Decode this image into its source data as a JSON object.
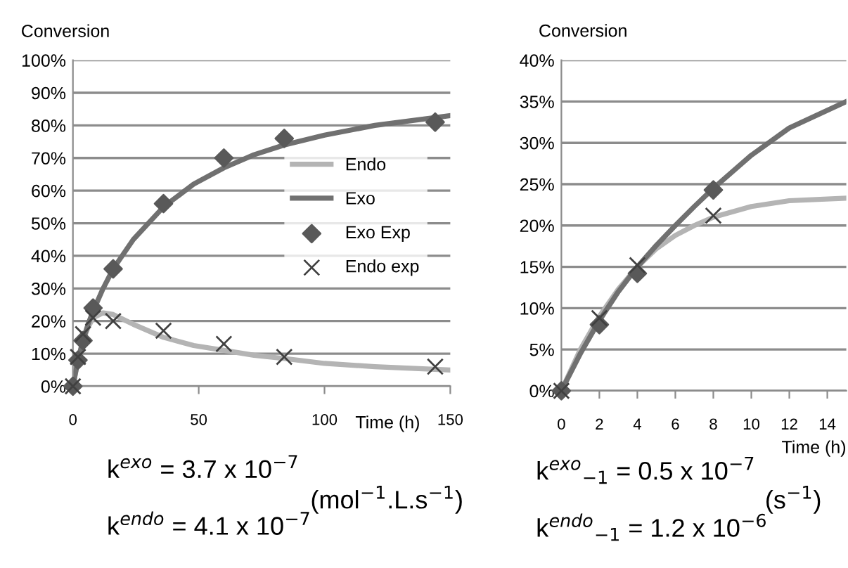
{
  "chart_data": [
    {
      "type": "line",
      "ylabel": "Conversion",
      "xlabel": "Time (h)",
      "xlim": [
        0,
        150
      ],
      "xticks": [
        0,
        50,
        100,
        150
      ],
      "ylim": [
        0,
        100
      ],
      "yticks": [
        {
          "value": 0,
          "label": "0%"
        },
        {
          "value": 10,
          "label": "10%"
        },
        {
          "value": 20,
          "label": "20%"
        },
        {
          "value": 30,
          "label": "30%"
        },
        {
          "value": 40,
          "label": "40%"
        },
        {
          "value": 50,
          "label": "50%"
        },
        {
          "value": 60,
          "label": "60%"
        },
        {
          "value": 70,
          "label": "70%"
        },
        {
          "value": 80,
          "label": "80%"
        },
        {
          "value": 90,
          "label": "90%"
        },
        {
          "value": 100,
          "label": "100%"
        }
      ],
      "grid": "y",
      "legend": "right",
      "series": [
        {
          "name": "Endo",
          "type": "line",
          "color": "#b4b4b4",
          "x": [
            0,
            2,
            4,
            6,
            8,
            12,
            16,
            24,
            36,
            48,
            60,
            72,
            84,
            100,
            120,
            150
          ],
          "values": [
            0,
            8,
            14,
            18,
            21,
            22.5,
            22,
            19,
            15,
            12.5,
            11,
            9.5,
            8.5,
            7,
            6,
            5
          ]
        },
        {
          "name": "Exo",
          "type": "line",
          "color": "#707070",
          "x": [
            0,
            2,
            4,
            6,
            8,
            12,
            16,
            24,
            36,
            48,
            60,
            72,
            84,
            100,
            120,
            150
          ],
          "values": [
            0,
            8,
            14,
            19,
            23,
            30,
            36,
            45,
            55,
            62,
            67,
            71,
            74,
            77,
            80,
            83
          ]
        },
        {
          "name": "Exo Exp",
          "type": "scatter",
          "marker": "diamond",
          "color": "#595959",
          "x": [
            0,
            2,
            4,
            8,
            16,
            36,
            60,
            84,
            144
          ],
          "values": [
            0,
            8,
            14,
            24,
            36,
            56,
            70,
            76,
            81
          ]
        },
        {
          "name": "Endo exp",
          "type": "scatter",
          "marker": "cross",
          "color": "#404040",
          "x": [
            0,
            2,
            4,
            8,
            16,
            36,
            60,
            84,
            144
          ],
          "values": [
            0,
            9,
            16,
            21,
            20,
            17,
            13,
            9,
            6
          ]
        }
      ],
      "annotations": [
        "k$^{exo}$ = 3.7 x 10$^{−7}$",
        "k$^{endo}$ = 4.1 x 10$^{−7}$",
        "(mol$^{−1}$.L.s$^{−1}$)"
      ]
    },
    {
      "type": "line",
      "ylabel": "Conversion",
      "xlabel": "Time (h)",
      "xlim": [
        0,
        15
      ],
      "xticks": [
        0,
        2,
        4,
        6,
        8,
        10,
        12,
        14
      ],
      "ylim": [
        0,
        40
      ],
      "yticks": [
        {
          "value": 0,
          "label": "0%"
        },
        {
          "value": 5,
          "label": "5%"
        },
        {
          "value": 10,
          "label": "10%"
        },
        {
          "value": 15,
          "label": "15%"
        },
        {
          "value": 20,
          "label": "20%"
        },
        {
          "value": 25,
          "label": "25%"
        },
        {
          "value": 30,
          "label": "30%"
        },
        {
          "value": 35,
          "label": "35%"
        },
        {
          "value": 40,
          "label": "40%"
        }
      ],
      "grid": "y",
      "series": [
        {
          "type": "line",
          "color": "#b4b4b4",
          "x": [
            0,
            1,
            2,
            3,
            4,
            5,
            6,
            7,
            8,
            10,
            12,
            15
          ],
          "values": [
            0,
            5,
            9,
            12.3,
            15,
            17.2,
            18.8,
            20,
            21,
            22.3,
            23,
            23.3
          ]
        },
        {
          "type": "line",
          "color": "#707070",
          "x": [
            0,
            1,
            2,
            3,
            4,
            5,
            6,
            7,
            8,
            10,
            12,
            15
          ],
          "values": [
            0,
            4.5,
            8.5,
            12,
            15,
            17.6,
            20,
            22.3,
            24.5,
            28.5,
            31.8,
            35
          ]
        },
        {
          "type": "scatter",
          "marker": "diamond",
          "color": "#595959",
          "x": [
            0,
            2,
            4,
            8
          ],
          "values": [
            0,
            8,
            14.2,
            24.3
          ]
        },
        {
          "type": "scatter",
          "marker": "cross",
          "color": "#404040",
          "x": [
            0,
            2,
            4,
            8
          ],
          "values": [
            0,
            8.8,
            15.2,
            21.2
          ]
        }
      ],
      "annotations": [
        "k$^{exo}$$_{−1}$ = 0.5 x 10$^{−7}$",
        "k$^{endo}$$_{−1}$ = 1.2 x 10$^{−6}$",
        "(s$^{−1}$)"
      ]
    }
  ]
}
